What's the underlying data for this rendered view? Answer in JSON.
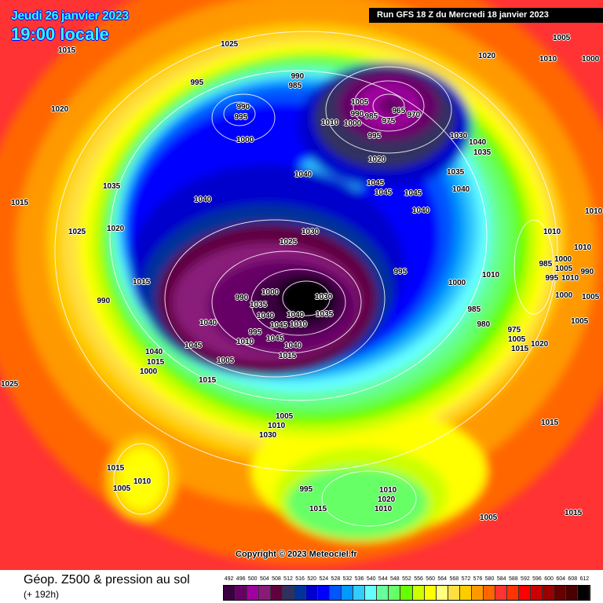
{
  "header": {
    "date": "Jeudi 26 janvier 2023",
    "time": "19:00 locale",
    "run": "Run GFS 18 Z du Mercredi 18 janvier 2023"
  },
  "map": {
    "copyright": "Copyright © 2023 Meteociel.fr",
    "pressure_labels": [
      "1015",
      "1025",
      "1005",
      "1020",
      "1010",
      "1000",
      "1020",
      "995",
      "990",
      "985",
      "990",
      "995",
      "1000",
      "1010",
      "1005",
      "990",
      "985",
      "965",
      "975",
      "970",
      "1000",
      "1030",
      "1040",
      "1040",
      "995",
      "1020",
      "1045",
      "1045",
      "1035",
      "1045",
      "1040",
      "1040",
      "1035",
      "1015",
      "1040",
      "1010",
      "1030",
      "1025",
      "1020",
      "1035",
      "1025",
      "1010",
      "1000",
      "1005",
      "1010",
      "1010",
      "995",
      "985",
      "990",
      "1015",
      "990",
      "1000",
      "1005",
      "1010",
      "1000",
      "995",
      "985",
      "980",
      "975",
      "1005",
      "1015",
      "1020",
      "1005",
      "1000",
      "990",
      "1035",
      "1040",
      "1045",
      "1010",
      "1030",
      "1035",
      "1040",
      "1045",
      "1040",
      "1040",
      "1045",
      "1040",
      "1015",
      "1000",
      "1005",
      "1010",
      "995",
      "1015",
      "1015",
      "1025",
      "1015",
      "1005",
      "1010",
      "1030",
      "1015",
      "1010",
      "1005",
      "995",
      "1015",
      "1010",
      "1020",
      "1010",
      "1005",
      "1015"
    ]
  },
  "footer": {
    "title": "Géop. Z500 & pression au sol",
    "subtitle": "(+ 192h)"
  },
  "legend": {
    "labels": [
      "492",
      "496",
      "500",
      "504",
      "508",
      "512",
      "516",
      "520",
      "524",
      "528",
      "532",
      "536",
      "540",
      "544",
      "548",
      "552",
      "556",
      "560",
      "564",
      "568",
      "572",
      "576",
      "580",
      "584",
      "588",
      "592",
      "596",
      "600",
      "604",
      "608",
      "612"
    ],
    "colors": [
      "#3a0040",
      "#660066",
      "#a000a0",
      "#8a1a7a",
      "#600040",
      "#303060",
      "#003399",
      "#0000cc",
      "#0000ff",
      "#0055ff",
      "#0099ff",
      "#33ccff",
      "#66ffff",
      "#66ff99",
      "#66ff66",
      "#66ff00",
      "#ccff00",
      "#ffff00",
      "#ffff80",
      "#ffe040",
      "#ffcc00",
      "#ff9900",
      "#ff6600",
      "#ff3333",
      "#ff3300",
      "#ff0000",
      "#cc0000",
      "#990000",
      "#660000",
      "#4a0000",
      "#000000"
    ]
  }
}
